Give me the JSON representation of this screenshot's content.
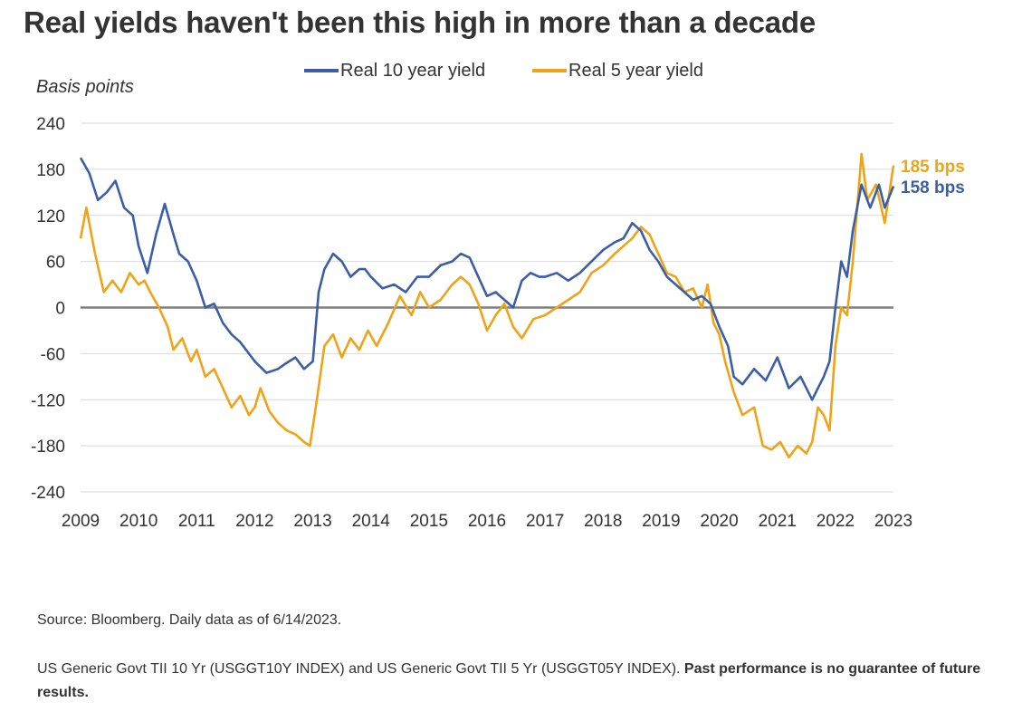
{
  "title": "Real yields haven't been this high in more than a decade",
  "source": "Source: Bloomberg. Daily data as of 6/14/2023.",
  "note": {
    "text": "US Generic Govt TII 10 Yr (USGGT10Y INDEX) and US Generic Govt TII 5 Yr (USGGT05Y INDEX). ",
    "bold": "Past performance is no guarantee of future results."
  },
  "colors": {
    "ten_year": "#3b5ea6",
    "five_year": "#f0a317",
    "zero_line": "#7f7f7f",
    "grid": "#d9d9d9",
    "text": "#333333"
  },
  "chart_data": {
    "type": "line",
    "ylabel": "Basis points",
    "ylim": [
      -240,
      240
    ],
    "yticks": [
      240,
      180,
      120,
      60,
      0,
      -60,
      -120,
      -180,
      -240
    ],
    "xlim": [
      2009,
      2023
    ],
    "xticks": [
      "2009",
      "2010",
      "2011",
      "2012",
      "2013",
      "2014",
      "2015",
      "2016",
      "2017",
      "2018",
      "2019",
      "2020",
      "2021",
      "2022",
      "2023"
    ],
    "grid": true,
    "legend": "top-center",
    "series": [
      {
        "name": "Real 10 year yield",
        "color": "#3b5ea6",
        "end_label": "158 bps",
        "x": [
          2009.0,
          2009.15,
          2009.3,
          2009.45,
          2009.6,
          2009.75,
          2009.9,
          2010.0,
          2010.15,
          2010.3,
          2010.45,
          2010.6,
          2010.7,
          2010.85,
          2011.0,
          2011.15,
          2011.3,
          2011.45,
          2011.6,
          2011.75,
          2011.9,
          2012.0,
          2012.2,
          2012.4,
          2012.55,
          2012.7,
          2012.85,
          2013.0,
          2013.1,
          2013.2,
          2013.35,
          2013.5,
          2013.65,
          2013.8,
          2013.9,
          2014.0,
          2014.2,
          2014.4,
          2014.6,
          2014.8,
          2015.0,
          2015.2,
          2015.4,
          2015.55,
          2015.7,
          2015.85,
          2016.0,
          2016.15,
          2016.3,
          2016.45,
          2016.6,
          2016.75,
          2016.9,
          2017.0,
          2017.2,
          2017.4,
          2017.6,
          2017.8,
          2018.0,
          2018.2,
          2018.35,
          2018.5,
          2018.65,
          2018.8,
          2018.95,
          2019.1,
          2019.25,
          2019.4,
          2019.55,
          2019.7,
          2019.85,
          2020.0,
          2020.15,
          2020.25,
          2020.4,
          2020.6,
          2020.8,
          2021.0,
          2021.2,
          2021.4,
          2021.6,
          2021.7,
          2021.8,
          2021.9,
          2022.0,
          2022.1,
          2022.2,
          2022.3,
          2022.45,
          2022.6,
          2022.75,
          2022.85,
          2023.0
        ],
        "values": [
          195,
          175,
          140,
          150,
          165,
          130,
          120,
          80,
          45,
          95,
          135,
          95,
          70,
          60,
          35,
          0,
          5,
          -20,
          -35,
          -45,
          -60,
          -70,
          -85,
          -80,
          -72,
          -65,
          -80,
          -70,
          20,
          50,
          70,
          60,
          40,
          50,
          50,
          40,
          25,
          30,
          20,
          40,
          40,
          55,
          60,
          70,
          65,
          40,
          15,
          20,
          10,
          0,
          35,
          45,
          40,
          40,
          45,
          35,
          45,
          60,
          75,
          85,
          90,
          110,
          100,
          75,
          60,
          40,
          30,
          20,
          10,
          15,
          5,
          -25,
          -50,
          -90,
          -100,
          -80,
          -95,
          -65,
          -105,
          -90,
          -120,
          -105,
          -90,
          -70,
          0,
          60,
          40,
          100,
          160,
          130,
          160,
          130,
          158
        ]
      },
      {
        "name": "Real 5 year yield",
        "color": "#f0a317",
        "end_label": "185 bps",
        "x": [
          2009.0,
          2009.1,
          2009.25,
          2009.4,
          2009.55,
          2009.7,
          2009.85,
          2010.0,
          2010.1,
          2010.2,
          2010.35,
          2010.5,
          2010.6,
          2010.75,
          2010.9,
          2011.0,
          2011.15,
          2011.3,
          2011.45,
          2011.6,
          2011.75,
          2011.9,
          2012.0,
          2012.1,
          2012.25,
          2012.4,
          2012.55,
          2012.7,
          2012.85,
          2012.95,
          2013.05,
          2013.2,
          2013.35,
          2013.5,
          2013.65,
          2013.8,
          2013.95,
          2014.1,
          2014.3,
          2014.5,
          2014.7,
          2014.85,
          2015.0,
          2015.2,
          2015.4,
          2015.55,
          2015.7,
          2015.85,
          2016.0,
          2016.15,
          2016.3,
          2016.45,
          2016.6,
          2016.8,
          2017.0,
          2017.2,
          2017.4,
          2017.6,
          2017.8,
          2018.0,
          2018.2,
          2018.35,
          2018.5,
          2018.65,
          2018.8,
          2018.95,
          2019.1,
          2019.25,
          2019.4,
          2019.55,
          2019.7,
          2019.8,
          2019.9,
          2020.0,
          2020.1,
          2020.25,
          2020.4,
          2020.6,
          2020.75,
          2020.9,
          2021.05,
          2021.2,
          2021.35,
          2021.5,
          2021.6,
          2021.7,
          2021.8,
          2021.9,
          2022.0,
          2022.1,
          2022.2,
          2022.3,
          2022.45,
          2022.55,
          2022.7,
          2022.85,
          2023.0
        ],
        "values": [
          90,
          130,
          70,
          20,
          35,
          20,
          45,
          30,
          35,
          20,
          0,
          -25,
          -55,
          -40,
          -70,
          -55,
          -90,
          -80,
          -105,
          -130,
          -115,
          -140,
          -130,
          -105,
          -135,
          -150,
          -160,
          -165,
          -175,
          -180,
          -130,
          -50,
          -35,
          -65,
          -40,
          -55,
          -30,
          -50,
          -20,
          15,
          -10,
          20,
          0,
          10,
          30,
          40,
          30,
          5,
          -30,
          -10,
          5,
          -25,
          -40,
          -15,
          -10,
          0,
          10,
          20,
          45,
          55,
          70,
          80,
          90,
          105,
          95,
          70,
          45,
          40,
          20,
          25,
          0,
          30,
          -20,
          -35,
          -70,
          -110,
          -140,
          -130,
          -180,
          -185,
          -175,
          -195,
          -180,
          -190,
          -175,
          -130,
          -140,
          -160,
          -50,
          0,
          -10,
          60,
          200,
          140,
          160,
          110,
          185
        ]
      }
    ]
  }
}
